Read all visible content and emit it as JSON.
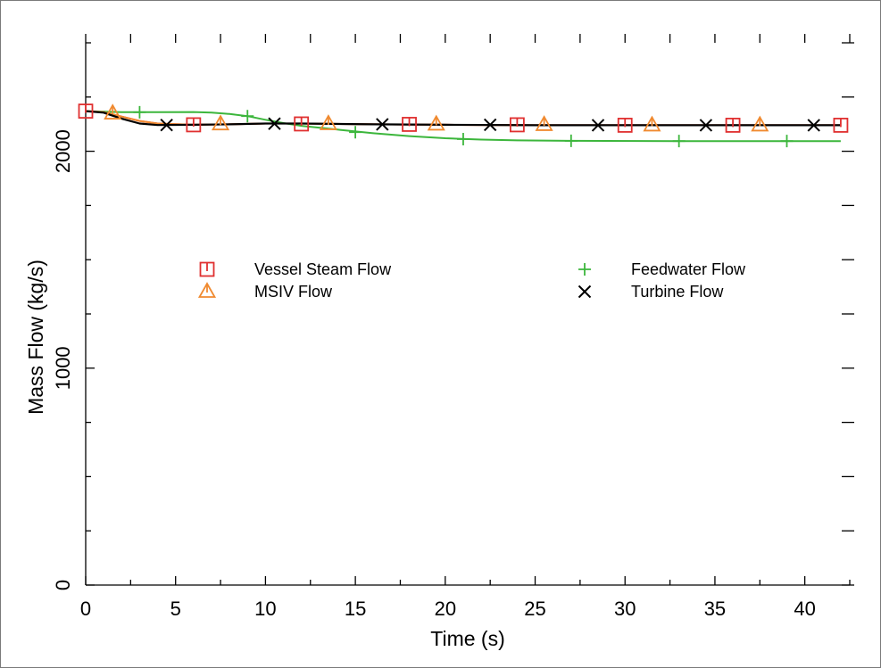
{
  "chart_data": {
    "type": "line",
    "xlabel": "Time (s)",
    "ylabel": "Mass Flow (kg/s)",
    "xlim": [
      0,
      42.5
    ],
    "ylim": [
      0,
      2500
    ],
    "x_ticks": [
      0,
      5,
      10,
      15,
      20,
      25,
      30,
      35,
      40
    ],
    "x_tick_labels": [
      "0",
      "5",
      "10",
      "15",
      "20",
      "25",
      "30",
      "35",
      "40"
    ],
    "y_ticks": [
      0,
      1000,
      2000
    ],
    "y_tick_labels": [
      "0",
      "1000",
      "2000"
    ],
    "grid": false,
    "legend_position": "center",
    "series": [
      {
        "name": "Vessel Steam Flow",
        "color": "#e03030",
        "marker": "square",
        "line": [
          [
            0,
            2185
          ],
          [
            1,
            2180
          ],
          [
            2,
            2160
          ],
          [
            3,
            2140
          ],
          [
            4,
            2128
          ],
          [
            5,
            2125
          ],
          [
            6,
            2122
          ],
          [
            8,
            2124
          ],
          [
            10,
            2128
          ],
          [
            12,
            2128
          ],
          [
            16,
            2124
          ],
          [
            20,
            2122
          ],
          [
            25,
            2120
          ],
          [
            30,
            2120
          ],
          [
            35,
            2120
          ],
          [
            42,
            2120
          ]
        ],
        "markers": [
          [
            0,
            2185
          ],
          [
            6,
            2122
          ],
          [
            12,
            2126
          ],
          [
            18,
            2124
          ],
          [
            24,
            2122
          ],
          [
            30,
            2120
          ],
          [
            36,
            2120
          ],
          [
            42,
            2120
          ]
        ]
      },
      {
        "name": "MSIV Flow",
        "color": "#f08a30",
        "marker": "triangle",
        "line": [
          [
            0,
            2185
          ],
          [
            1,
            2180
          ],
          [
            2,
            2160
          ],
          [
            3,
            2140
          ],
          [
            4,
            2128
          ],
          [
            5,
            2125
          ],
          [
            6,
            2122
          ],
          [
            8,
            2124
          ],
          [
            10,
            2128
          ],
          [
            12,
            2128
          ],
          [
            16,
            2124
          ],
          [
            20,
            2122
          ],
          [
            25,
            2120
          ],
          [
            30,
            2120
          ],
          [
            35,
            2120
          ],
          [
            42,
            2120
          ]
        ],
        "markers": [
          [
            1.5,
            2175
          ],
          [
            7.5,
            2125
          ],
          [
            13.5,
            2126
          ],
          [
            19.5,
            2124
          ],
          [
            25.5,
            2122
          ],
          [
            31.5,
            2120
          ],
          [
            37.5,
            2120
          ]
        ]
      },
      {
        "name": "Feedwater Flow",
        "color": "#3cb63c",
        "marker": "plus",
        "line": [
          [
            0,
            2185
          ],
          [
            2,
            2180
          ],
          [
            4,
            2180
          ],
          [
            6,
            2181
          ],
          [
            7,
            2178
          ],
          [
            8,
            2172
          ],
          [
            9,
            2162
          ],
          [
            10,
            2145
          ],
          [
            11,
            2130
          ],
          [
            12,
            2117
          ],
          [
            14,
            2100
          ],
          [
            16,
            2083
          ],
          [
            18,
            2070
          ],
          [
            20,
            2060
          ],
          [
            22,
            2054
          ],
          [
            24,
            2050
          ],
          [
            27,
            2048
          ],
          [
            33,
            2047
          ],
          [
            42,
            2047
          ]
        ],
        "markers": [
          [
            3,
            2180
          ],
          [
            9,
            2162
          ],
          [
            15,
            2088
          ],
          [
            21,
            2056
          ],
          [
            27,
            2048
          ],
          [
            33,
            2047
          ],
          [
            39,
            2047
          ]
        ]
      },
      {
        "name": "Turbine Flow",
        "color": "#000000",
        "marker": "x",
        "line": [
          [
            0,
            2185
          ],
          [
            1,
            2178
          ],
          [
            2,
            2150
          ],
          [
            3,
            2128
          ],
          [
            4,
            2121
          ],
          [
            6,
            2122
          ],
          [
            8,
            2124
          ],
          [
            10,
            2128
          ],
          [
            12,
            2128
          ],
          [
            16,
            2124
          ],
          [
            20,
            2122
          ],
          [
            25,
            2120
          ],
          [
            30,
            2120
          ],
          [
            35,
            2120
          ],
          [
            42,
            2120
          ]
        ],
        "markers": [
          [
            4.5,
            2121
          ],
          [
            10.5,
            2127
          ],
          [
            16.5,
            2124
          ],
          [
            22.5,
            2122
          ],
          [
            28.5,
            2120
          ],
          [
            34.5,
            2120
          ],
          [
            40.5,
            2120
          ]
        ]
      }
    ]
  }
}
